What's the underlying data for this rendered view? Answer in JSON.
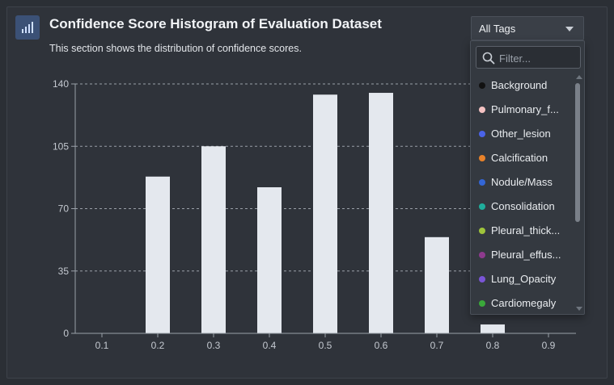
{
  "header": {
    "title": "Confidence Score Histogram of Evaluation Dataset",
    "subtitle": "This section shows the distribution of confidence scores.",
    "icon": "bar-chart-icon"
  },
  "tags_dropdown": {
    "selected": "All Tags",
    "filter_placeholder": "Filter...",
    "items": [
      {
        "label": "Background",
        "color": "#111111"
      },
      {
        "label": "Pulmonary_f...",
        "color": "#f4c2c2"
      },
      {
        "label": "Other_lesion",
        "color": "#4a63e8"
      },
      {
        "label": "Calcification",
        "color": "#e8822a"
      },
      {
        "label": "Nodule/Mass",
        "color": "#3366d6"
      },
      {
        "label": "Consolidation",
        "color": "#1fae9c"
      },
      {
        "label": "Pleural_thick...",
        "color": "#9fc43b"
      },
      {
        "label": "Pleural_effus...",
        "color": "#8e3a8e"
      },
      {
        "label": "Lung_Opacity",
        "color": "#7a55d6"
      },
      {
        "label": "Cardiomegaly",
        "color": "#3aa83a"
      }
    ]
  },
  "chart_data": {
    "type": "bar",
    "title": "",
    "xlabel": "",
    "ylabel": "",
    "categories": [
      "0.1",
      "0.2",
      "0.3",
      "0.4",
      "0.5",
      "0.6",
      "0.7",
      "0.8",
      "0.9"
    ],
    "values": [
      0,
      88,
      105,
      82,
      134,
      135,
      54,
      5,
      0
    ],
    "yticks": [
      0,
      35,
      70,
      105,
      140
    ],
    "ylim": [
      0,
      140
    ],
    "grid": true,
    "bar_color": "#e4e8ee",
    "grid_color": "#9aa0a8"
  }
}
